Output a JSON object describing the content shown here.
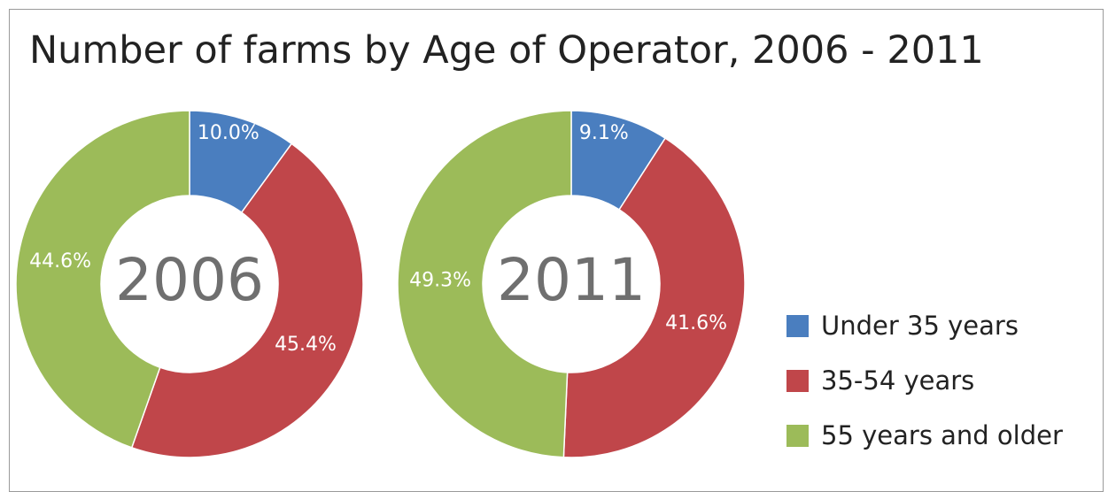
{
  "chart_data": {
    "type": "pie",
    "variant": "donut",
    "title": "Number of farms by Age of Operator, 2006 - 2011",
    "legend_position": "right",
    "categories": [
      "Under 35 years",
      "35-54 years",
      "55 years and older"
    ],
    "colors": [
      "#4a7ebf",
      "#c0464a",
      "#9cbb59"
    ],
    "charts": [
      {
        "center_label": "2006",
        "values": [
          10.0,
          45.4,
          44.6
        ],
        "value_labels": [
          "10.0%",
          "45.4%",
          "44.6%"
        ]
      },
      {
        "center_label": "2011",
        "values": [
          9.1,
          41.6,
          49.3
        ],
        "value_labels": [
          "9.1%",
          "41.6%",
          "49.3%"
        ]
      }
    ]
  }
}
